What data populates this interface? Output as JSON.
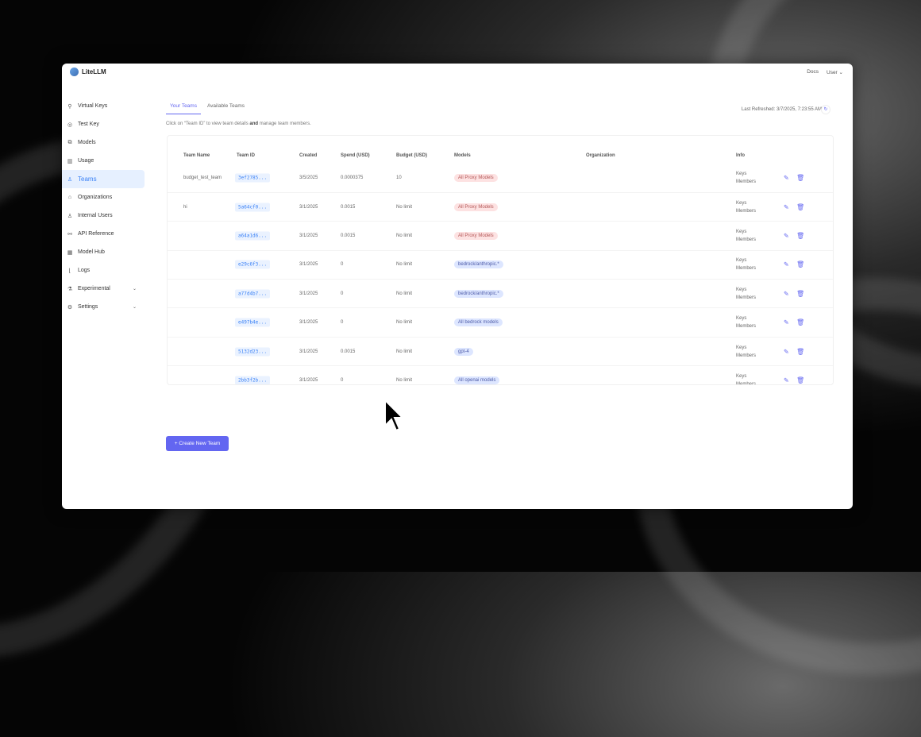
{
  "app": {
    "name": "LiteLLM",
    "docs": "Docs",
    "user": "User"
  },
  "sidebar": {
    "items": [
      {
        "label": "Virtual Keys",
        "icon": "⚲"
      },
      {
        "label": "Test Key",
        "icon": "◎"
      },
      {
        "label": "Models",
        "icon": "⧉"
      },
      {
        "label": "Usage",
        "icon": "▥"
      },
      {
        "label": "Teams",
        "icon": "♙",
        "active": true
      },
      {
        "label": "Organizations",
        "icon": "⌂"
      },
      {
        "label": "Internal Users",
        "icon": "♙"
      },
      {
        "label": "API Reference",
        "icon": "⚯"
      },
      {
        "label": "Model Hub",
        "icon": "▦"
      },
      {
        "label": "Logs",
        "icon": "⌊"
      },
      {
        "label": "Experimental",
        "icon": "⚗",
        "chevron": "⌄"
      },
      {
        "label": "Settings",
        "icon": "⚙",
        "chevron": "⌄"
      }
    ]
  },
  "tabs": [
    "Your Teams",
    "Available Teams"
  ],
  "hint": {
    "pre": "Click on “Team ID” to view team details ",
    "bold": "and",
    "post": " manage team members."
  },
  "last_refreshed": "Last Refreshed: 3/7/2025, 7:23:55 AM",
  "table": {
    "headers": [
      "Team Name",
      "Team ID",
      "Created",
      "Spend (USD)",
      "Budget (USD)",
      "Models",
      "Organization",
      "Info"
    ],
    "rows": [
      {
        "name": "budget_test_team",
        "id": "3ef2785...",
        "created": "3/5/2025",
        "spend": "0.0000375",
        "budget": "10",
        "model": "All Proxy Models",
        "color": "red",
        "info1": "Keys",
        "info2": "Members"
      },
      {
        "name": "hi",
        "id": "5a64cf0...",
        "created": "3/1/2025",
        "spend": "0.0015",
        "budget": "No limit",
        "model": "All Proxy Models",
        "color": "red",
        "info1": "Keys",
        "info2": "Members"
      },
      {
        "name": "",
        "id": "a64a1d6...",
        "created": "3/1/2025",
        "spend": "0.0015",
        "budget": "No limit",
        "model": "All Proxy Models",
        "color": "red",
        "info1": "Keys",
        "info2": "Members"
      },
      {
        "name": "",
        "id": "e29c6f3...",
        "created": "3/1/2025",
        "spend": "0",
        "budget": "No limit",
        "model": "bedrock/anthropic.*",
        "color": "blue",
        "info1": "Keys",
        "info2": "Members"
      },
      {
        "name": "",
        "id": "a77d4b7...",
        "created": "3/1/2025",
        "spend": "0",
        "budget": "No limit",
        "model": "bedrock/anthropic.*",
        "color": "blue",
        "info1": "Keys",
        "info2": "Members"
      },
      {
        "name": "",
        "id": "e497b4e...",
        "created": "3/1/2025",
        "spend": "0",
        "budget": "No limit",
        "model": "All bedrock models",
        "color": "blue",
        "info1": "Keys",
        "info2": "Members"
      },
      {
        "name": "",
        "id": "5132d23...",
        "created": "3/1/2025",
        "spend": "0.0015",
        "budget": "No limit",
        "model": "gpt-4",
        "color": "blue",
        "info1": "Keys",
        "info2": "Members"
      },
      {
        "name": "",
        "id": "2bb3f2b...",
        "created": "3/1/2025",
        "spend": "0",
        "budget": "No limit",
        "model": "All openai models",
        "color": "blue",
        "info1": "Keys",
        "info2": "Members"
      }
    ]
  },
  "create_button": "+ Create New Team",
  "colors": {
    "accent": "#6366f1",
    "active_nav": "#3b82f6"
  }
}
